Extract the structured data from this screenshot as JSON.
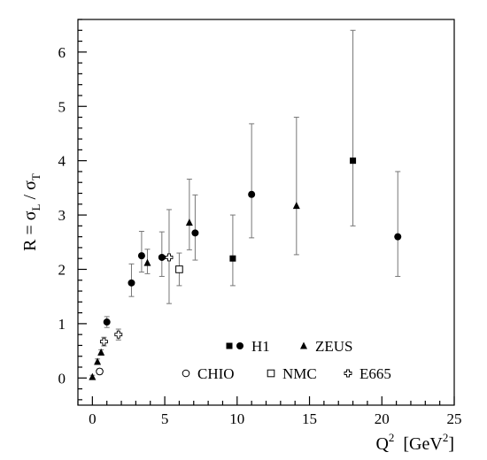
{
  "chart_data": {
    "type": "scatter",
    "title": "",
    "xlabel": {
      "main": "Q",
      "sup": "2",
      "unit_pre": "[GeV",
      "unit_sup": "2",
      "unit_post": "]"
    },
    "ylabel": {
      "prefix": "R = σ",
      "sub1": "L",
      "mid": " / σ",
      "sub2": "T"
    },
    "xlim": [
      -1,
      25
    ],
    "ylim": [
      -0.5,
      6.6
    ],
    "xticks": [
      0,
      5,
      10,
      15,
      20,
      25
    ],
    "yticks": [
      0,
      1,
      2,
      3,
      4,
      5,
      6
    ],
    "grid": false,
    "legend_position": "bottom-right",
    "series": [
      {
        "name": "H1",
        "marker": "square",
        "points": [
          {
            "x": 9.7,
            "y": 2.2,
            "err_minus": 0.5,
            "err_plus": 0.8
          },
          {
            "x": 18.0,
            "y": 4.0,
            "err_minus": 1.2,
            "err_plus": 2.4
          }
        ]
      },
      {
        "name": "H1",
        "marker": "circle",
        "points": [
          {
            "x": 1.0,
            "y": 1.03,
            "err_minus": 0.1,
            "err_plus": 0.1
          },
          {
            "x": 2.7,
            "y": 1.75,
            "err_minus": 0.25,
            "err_plus": 0.35
          },
          {
            "x": 3.4,
            "y": 2.25,
            "err_minus": 0.3,
            "err_plus": 0.45
          },
          {
            "x": 4.8,
            "y": 2.22,
            "err_minus": 0.35,
            "err_plus": 0.47
          },
          {
            "x": 7.1,
            "y": 2.67,
            "err_minus": 0.5,
            "err_plus": 0.7
          },
          {
            "x": 11.0,
            "y": 3.38,
            "err_minus": 0.8,
            "err_plus": 1.3
          },
          {
            "x": 21.1,
            "y": 2.6,
            "err_minus": 0.73,
            "err_plus": 1.2
          }
        ]
      },
      {
        "name": "ZEUS",
        "marker": "triangle",
        "points": [
          {
            "x": 0.0,
            "y": 0.02,
            "err_minus": 0.03,
            "err_plus": 0.03
          },
          {
            "x": 0.35,
            "y": 0.3,
            "err_minus": 0.05,
            "err_plus": 0.05
          },
          {
            "x": 0.6,
            "y": 0.47,
            "err_minus": 0.05,
            "err_plus": 0.05
          },
          {
            "x": 3.8,
            "y": 2.12,
            "err_minus": 0.2,
            "err_plus": 0.25
          },
          {
            "x": 6.7,
            "y": 2.86,
            "err_minus": 0.5,
            "err_plus": 0.8
          },
          {
            "x": 14.1,
            "y": 3.17,
            "err_minus": 0.9,
            "err_plus": 1.63
          }
        ]
      },
      {
        "name": "CHIO",
        "marker": "open-circle",
        "points": [
          {
            "x": 0.5,
            "y": 0.12,
            "err_minus": 0.05,
            "err_plus": 0.05
          }
        ]
      },
      {
        "name": "NMC",
        "marker": "open-square",
        "points": [
          {
            "x": 6.0,
            "y": 2.0,
            "err_minus": 0.3,
            "err_plus": 0.3
          }
        ]
      },
      {
        "name": "E665",
        "marker": "open-cross",
        "points": [
          {
            "x": 0.8,
            "y": 0.67,
            "err_minus": 0.08,
            "err_plus": 0.08
          },
          {
            "x": 1.8,
            "y": 0.8,
            "err_minus": 0.1,
            "err_plus": 0.1
          },
          {
            "x": 5.3,
            "y": 2.22,
            "err_minus": 0.85,
            "err_plus": 0.88
          }
        ]
      }
    ],
    "legend": {
      "rows": [
        [
          {
            "label": "H1",
            "markers": [
              "square",
              "circle"
            ]
          },
          {
            "label": "ZEUS",
            "markers": [
              "triangle"
            ]
          }
        ],
        [
          {
            "label": "CHIO",
            "markers": [
              "open-circle"
            ]
          },
          {
            "label": "NMC",
            "markers": [
              "open-square"
            ]
          },
          {
            "label": "E665",
            "markers": [
              "open-cross"
            ]
          }
        ]
      ]
    }
  }
}
